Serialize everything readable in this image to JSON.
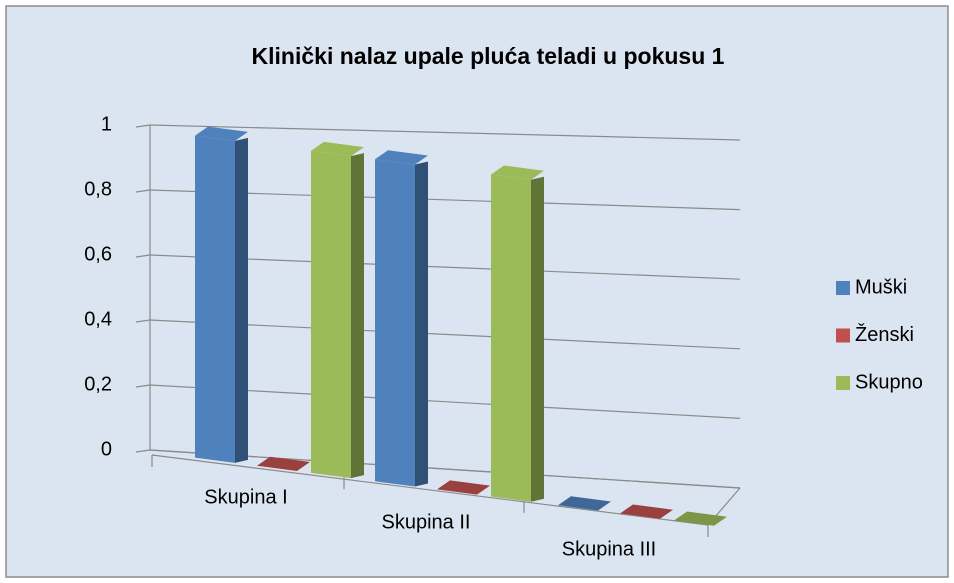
{
  "chart_data": {
    "type": "bar3d",
    "title": "Klinički nalaz upale pluća teladi u pokusu 1",
    "categories": [
      "Skupina I",
      "Skupina II",
      "Skupina III"
    ],
    "series": [
      {
        "name": "Muški",
        "color": "#4f81bd",
        "values": [
          1,
          1,
          0
        ]
      },
      {
        "name": "Ženski",
        "color": "#c0504d",
        "values": [
          0,
          0,
          0
        ]
      },
      {
        "name": "Skupno",
        "color": "#9bbb59",
        "values": [
          1,
          1,
          0
        ]
      }
    ],
    "ylim": [
      0,
      1
    ],
    "yticks": [
      0,
      {
        "value": 0.2,
        "label": "0,2"
      },
      {
        "value": 0.4,
        "label": "0,4"
      },
      {
        "value": 0.6,
        "label": "0,6"
      },
      {
        "value": 0.8,
        "label": "0,8"
      },
      1
    ],
    "grid": true,
    "legend": "right"
  }
}
